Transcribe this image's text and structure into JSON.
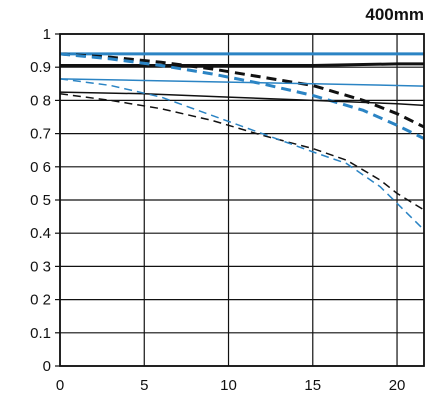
{
  "chart_data": {
    "type": "line",
    "title": "400mm",
    "xlabel": "",
    "ylabel": "",
    "xlim": [
      0,
      21.6
    ],
    "ylim": [
      0,
      1
    ],
    "x_ticks": [
      0,
      5,
      10,
      15,
      20
    ],
    "x_tick_labels": [
      "0",
      "5",
      "10",
      "15",
      "20"
    ],
    "y_ticks": [
      0,
      0.1,
      0.2,
      0.3,
      0.4,
      0.5,
      0.6,
      0.7,
      0.8,
      0.9,
      1
    ],
    "y_tick_labels": [
      "0",
      "0.1",
      "0 2",
      "0 3",
      "0.4",
      "0 5",
      "0 6",
      "0.7",
      "0 8",
      "0.9",
      "1"
    ],
    "grid": true,
    "legend": false,
    "series": [
      {
        "color": "#2b84c4",
        "width": 3,
        "dash": "solid",
        "points": [
          [
            0,
            0.94
          ],
          [
            5,
            0.94
          ],
          [
            10,
            0.94
          ],
          [
            15,
            0.94
          ],
          [
            20,
            0.94
          ],
          [
            21.6,
            0.94
          ]
        ]
      },
      {
        "color": "#111111",
        "width": 3,
        "dash": "solid",
        "points": [
          [
            0,
            0.905
          ],
          [
            5,
            0.905
          ],
          [
            10,
            0.905
          ],
          [
            15,
            0.905
          ],
          [
            20,
            0.91
          ],
          [
            21.6,
            0.91
          ]
        ]
      },
      {
        "color": "#111111",
        "width": 3,
        "dash": "dashed",
        "points": [
          [
            0,
            0.94
          ],
          [
            3,
            0.93
          ],
          [
            6,
            0.915
          ],
          [
            9,
            0.895
          ],
          [
            12,
            0.87
          ],
          [
            15,
            0.845
          ],
          [
            18,
            0.8
          ],
          [
            20,
            0.76
          ],
          [
            21.6,
            0.72
          ]
        ]
      },
      {
        "color": "#2b84c4",
        "width": 3,
        "dash": "dashed",
        "points": [
          [
            0,
            0.94
          ],
          [
            3,
            0.925
          ],
          [
            6,
            0.905
          ],
          [
            9,
            0.88
          ],
          [
            12,
            0.85
          ],
          [
            15,
            0.815
          ],
          [
            18,
            0.77
          ],
          [
            20,
            0.725
          ],
          [
            21.6,
            0.685
          ]
        ]
      },
      {
        "color": "#2b84c4",
        "width": 1.5,
        "dash": "solid",
        "points": [
          [
            0,
            0.865
          ],
          [
            5,
            0.86
          ],
          [
            10,
            0.855
          ],
          [
            15,
            0.85
          ],
          [
            20,
            0.845
          ],
          [
            21.6,
            0.843
          ]
        ]
      },
      {
        "color": "#111111",
        "width": 1.5,
        "dash": "solid",
        "points": [
          [
            0,
            0.825
          ],
          [
            5,
            0.82
          ],
          [
            10,
            0.81
          ],
          [
            15,
            0.8
          ],
          [
            20,
            0.79
          ],
          [
            21.6,
            0.785
          ]
        ]
      },
      {
        "color": "#111111",
        "width": 1.5,
        "dash": "dashed",
        "points": [
          [
            0,
            0.82
          ],
          [
            3,
            0.8
          ],
          [
            6,
            0.775
          ],
          [
            9,
            0.74
          ],
          [
            12,
            0.695
          ],
          [
            15,
            0.655
          ],
          [
            17,
            0.62
          ],
          [
            19,
            0.56
          ],
          [
            20,
            0.52
          ],
          [
            21.6,
            0.47
          ]
        ]
      },
      {
        "color": "#2b84c4",
        "width": 1.5,
        "dash": "dashed",
        "points": [
          [
            0,
            0.865
          ],
          [
            3,
            0.845
          ],
          [
            6,
            0.81
          ],
          [
            9,
            0.755
          ],
          [
            12,
            0.7
          ],
          [
            15,
            0.645
          ],
          [
            17,
            0.61
          ],
          [
            19,
            0.54
          ],
          [
            20,
            0.49
          ],
          [
            21.6,
            0.41
          ]
        ]
      }
    ]
  }
}
